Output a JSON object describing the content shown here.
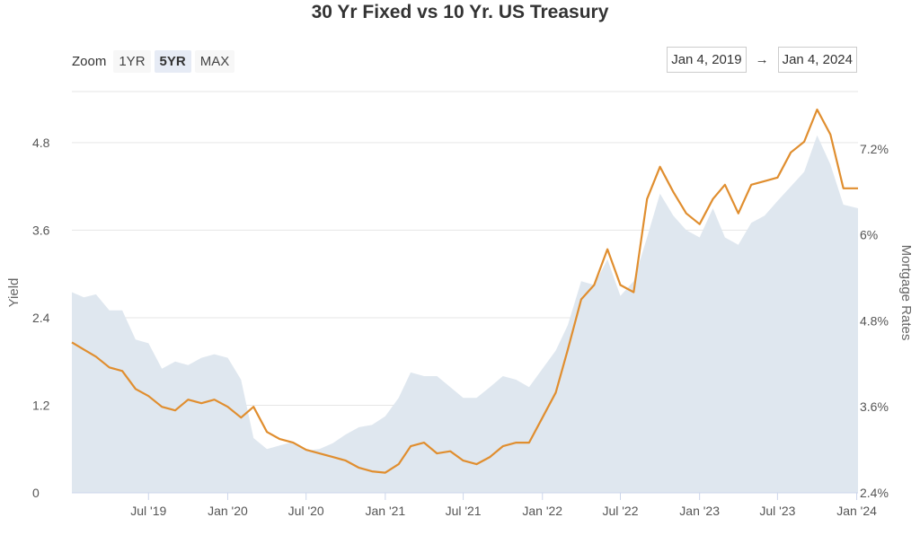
{
  "zoom": {
    "label": "Zoom",
    "buttons": [
      {
        "label": "1YR",
        "active": false
      },
      {
        "label": "5YR",
        "active": true
      },
      {
        "label": "MAX",
        "active": false
      }
    ]
  },
  "range": {
    "from": "Jan 4, 2019",
    "arrow": "→",
    "to": "Jan 4, 2024"
  },
  "chart_data": {
    "type": "area",
    "title": "30 Yr Fixed vs 10 Yr. US Treasury",
    "ylabel": "Yield",
    "y2label": "Mortgage Rates",
    "x_range": [
      "2019-01-04",
      "2024-01-04"
    ],
    "x_ticks": [
      {
        "date": "2019-07-01",
        "label": "Jul '19"
      },
      {
        "date": "2020-01-01",
        "label": "Jan '20"
      },
      {
        "date": "2020-07-01",
        "label": "Jul '20"
      },
      {
        "date": "2021-01-01",
        "label": "Jan '21"
      },
      {
        "date": "2021-07-01",
        "label": "Jul '21"
      },
      {
        "date": "2022-01-01",
        "label": "Jan '22"
      },
      {
        "date": "2022-07-01",
        "label": "Jul '22"
      },
      {
        "date": "2023-01-01",
        "label": "Jan '23"
      },
      {
        "date": "2023-07-01",
        "label": "Jul '23"
      },
      {
        "date": "2024-01-01",
        "label": "Jan '24"
      }
    ],
    "ylim": [
      0,
      5.5
    ],
    "y_ticks": [
      0,
      1.2,
      2.4,
      3.6,
      4.8
    ],
    "y_tick_labels": [
      "0",
      "1.2",
      "2.4",
      "3.6",
      "4.8"
    ],
    "y2lim": [
      2.4,
      8.0
    ],
    "y2_ticks": [
      2.4,
      3.6,
      4.8,
      6.0,
      7.2
    ],
    "y2_tick_labels": [
      "2.4%",
      "3.6%",
      "4.8%",
      "6%",
      "7.2%"
    ],
    "grid": true,
    "colors": {
      "treasury": "#dfe7ef",
      "mortgage": "#e08e2f",
      "grid": "#e6e6e6"
    },
    "series": [
      {
        "name": "",
        "axis": "left",
        "style": "area",
        "points": [
          [
            "2019-01-04",
            2.75
          ],
          [
            "2019-02-01",
            2.68
          ],
          [
            "2019-03-01",
            2.72
          ],
          [
            "2019-04-01",
            2.5
          ],
          [
            "2019-05-01",
            2.5
          ],
          [
            "2019-06-01",
            2.1
          ],
          [
            "2019-07-01",
            2.05
          ],
          [
            "2019-08-01",
            1.7
          ],
          [
            "2019-09-01",
            1.8
          ],
          [
            "2019-10-01",
            1.75
          ],
          [
            "2019-11-01",
            1.85
          ],
          [
            "2019-12-01",
            1.9
          ],
          [
            "2020-01-01",
            1.85
          ],
          [
            "2020-02-01",
            1.55
          ],
          [
            "2020-03-01",
            0.75
          ],
          [
            "2020-04-01",
            0.6
          ],
          [
            "2020-05-01",
            0.65
          ],
          [
            "2020-06-01",
            0.7
          ],
          [
            "2020-07-01",
            0.58
          ],
          [
            "2020-08-01",
            0.6
          ],
          [
            "2020-09-01",
            0.68
          ],
          [
            "2020-10-01",
            0.8
          ],
          [
            "2020-11-01",
            0.9
          ],
          [
            "2020-12-01",
            0.93
          ],
          [
            "2021-01-01",
            1.05
          ],
          [
            "2021-02-01",
            1.3
          ],
          [
            "2021-03-01",
            1.65
          ],
          [
            "2021-04-01",
            1.6
          ],
          [
            "2021-05-01",
            1.6
          ],
          [
            "2021-06-01",
            1.45
          ],
          [
            "2021-07-01",
            1.3
          ],
          [
            "2021-08-01",
            1.3
          ],
          [
            "2021-09-01",
            1.45
          ],
          [
            "2021-10-01",
            1.6
          ],
          [
            "2021-11-01",
            1.55
          ],
          [
            "2021-12-01",
            1.45
          ],
          [
            "2022-01-01",
            1.7
          ],
          [
            "2022-02-01",
            1.95
          ],
          [
            "2022-03-01",
            2.3
          ],
          [
            "2022-04-01",
            2.9
          ],
          [
            "2022-05-01",
            2.85
          ],
          [
            "2022-06-01",
            3.2
          ],
          [
            "2022-07-01",
            2.7
          ],
          [
            "2022-08-01",
            2.9
          ],
          [
            "2022-09-01",
            3.5
          ],
          [
            "2022-10-01",
            4.1
          ],
          [
            "2022-11-01",
            3.8
          ],
          [
            "2022-12-01",
            3.6
          ],
          [
            "2023-01-01",
            3.5
          ],
          [
            "2023-02-01",
            3.9
          ],
          [
            "2023-03-01",
            3.5
          ],
          [
            "2023-04-01",
            3.4
          ],
          [
            "2023-05-01",
            3.7
          ],
          [
            "2023-06-01",
            3.8
          ],
          [
            "2023-07-01",
            4.0
          ],
          [
            "2023-08-01",
            4.2
          ],
          [
            "2023-09-01",
            4.4
          ],
          [
            "2023-10-01",
            4.9
          ],
          [
            "2023-11-01",
            4.5
          ],
          [
            "2023-12-01",
            3.95
          ],
          [
            "2024-01-04",
            3.9
          ]
        ]
      },
      {
        "name": "",
        "axis": "right",
        "style": "line",
        "points": [
          [
            "2019-01-04",
            4.5
          ],
          [
            "2019-02-01",
            4.4
          ],
          [
            "2019-03-01",
            4.3
          ],
          [
            "2019-04-01",
            4.15
          ],
          [
            "2019-05-01",
            4.1
          ],
          [
            "2019-06-01",
            3.85
          ],
          [
            "2019-07-01",
            3.75
          ],
          [
            "2019-08-01",
            3.6
          ],
          [
            "2019-09-01",
            3.55
          ],
          [
            "2019-10-01",
            3.7
          ],
          [
            "2019-11-01",
            3.65
          ],
          [
            "2019-12-01",
            3.7
          ],
          [
            "2020-01-01",
            3.6
          ],
          [
            "2020-02-01",
            3.45
          ],
          [
            "2020-03-01",
            3.6
          ],
          [
            "2020-04-01",
            3.25
          ],
          [
            "2020-05-01",
            3.15
          ],
          [
            "2020-06-01",
            3.1
          ],
          [
            "2020-07-01",
            3.0
          ],
          [
            "2020-08-01",
            2.95
          ],
          [
            "2020-09-01",
            2.9
          ],
          [
            "2020-10-01",
            2.85
          ],
          [
            "2020-11-01",
            2.75
          ],
          [
            "2020-12-01",
            2.7
          ],
          [
            "2021-01-01",
            2.68
          ],
          [
            "2021-02-01",
            2.8
          ],
          [
            "2021-03-01",
            3.05
          ],
          [
            "2021-04-01",
            3.1
          ],
          [
            "2021-05-01",
            2.95
          ],
          [
            "2021-06-01",
            2.98
          ],
          [
            "2021-07-01",
            2.85
          ],
          [
            "2021-08-01",
            2.8
          ],
          [
            "2021-09-01",
            2.9
          ],
          [
            "2021-10-01",
            3.05
          ],
          [
            "2021-11-01",
            3.1
          ],
          [
            "2021-12-01",
            3.1
          ],
          [
            "2022-01-01",
            3.45
          ],
          [
            "2022-02-01",
            3.8
          ],
          [
            "2022-03-01",
            4.4
          ],
          [
            "2022-04-01",
            5.1
          ],
          [
            "2022-05-01",
            5.3
          ],
          [
            "2022-06-01",
            5.8
          ],
          [
            "2022-07-01",
            5.3
          ],
          [
            "2022-08-01",
            5.2
          ],
          [
            "2022-09-01",
            6.5
          ],
          [
            "2022-10-01",
            6.95
          ],
          [
            "2022-11-01",
            6.6
          ],
          [
            "2022-12-01",
            6.3
          ],
          [
            "2023-01-01",
            6.15
          ],
          [
            "2023-02-01",
            6.5
          ],
          [
            "2023-03-01",
            6.7
          ],
          [
            "2023-04-01",
            6.3
          ],
          [
            "2023-05-01",
            6.7
          ],
          [
            "2023-06-01",
            6.75
          ],
          [
            "2023-07-01",
            6.8
          ],
          [
            "2023-08-01",
            7.15
          ],
          [
            "2023-09-01",
            7.3
          ],
          [
            "2023-10-01",
            7.75
          ],
          [
            "2023-11-01",
            7.4
          ],
          [
            "2023-12-01",
            6.65
          ],
          [
            "2024-01-04",
            6.65
          ]
        ]
      }
    ]
  }
}
